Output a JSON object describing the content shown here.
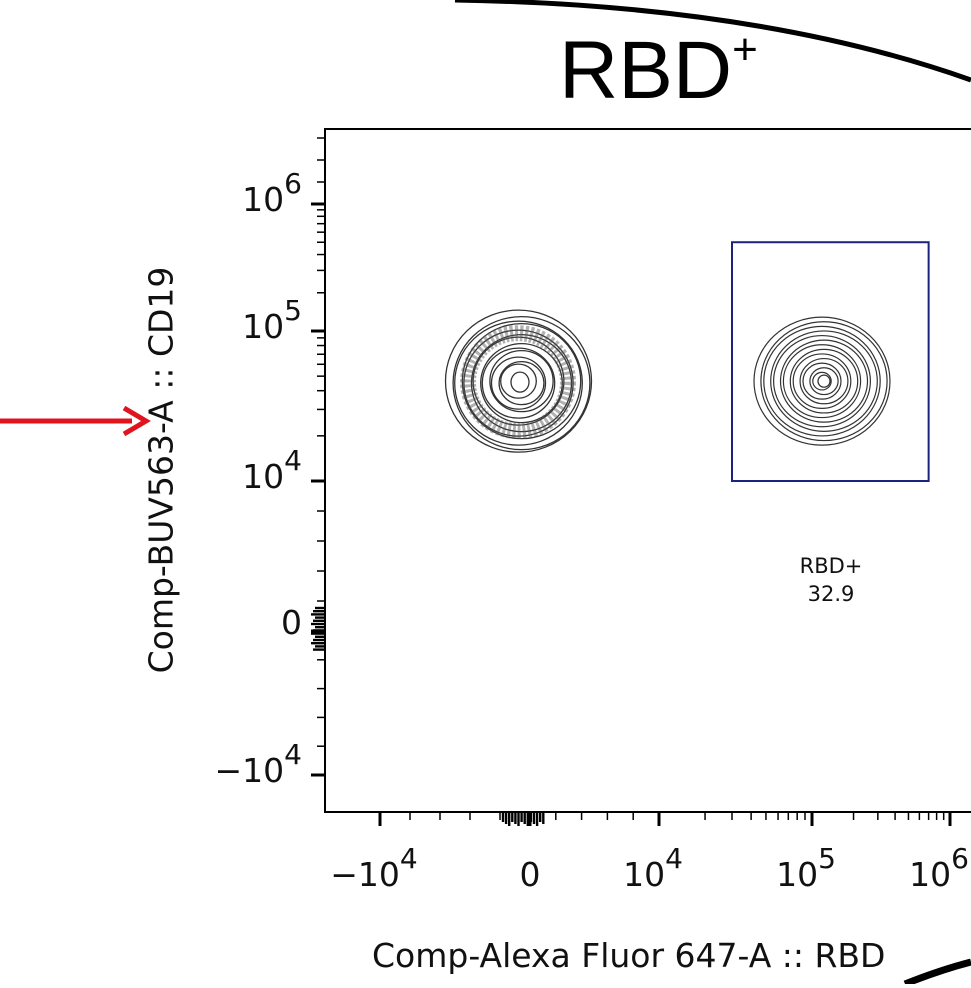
{
  "panel": {
    "title_main": "RBD",
    "title_sup": "+"
  },
  "chart_data": {
    "type": "scatter",
    "plot_style": "contour",
    "scale": "biexponential",
    "xlabel": "Comp-Alexa Fluor 647-A :: RBD",
    "ylabel": "Comp-BUV563-A :: CD19",
    "x_ticks": [
      "-10^4",
      "0",
      "10^4",
      "10^5",
      "10^6"
    ],
    "y_ticks": [
      "-10^4",
      "0",
      "10^4",
      "10^5",
      "10^6"
    ],
    "populations": [
      {
        "x": 0,
        "y": 50000,
        "shape": "ring"
      },
      {
        "x": 100000,
        "y": 50000,
        "shape": "solid"
      }
    ],
    "gates": [
      {
        "name": "RBD+",
        "percent": 32.9,
        "x_range": [
          30000,
          700000
        ],
        "y_range": [
          10000,
          500000
        ],
        "color": "#1a237e"
      }
    ]
  },
  "annotations": {
    "arrow_color": "#e0141e",
    "gate_label": "RBD+",
    "gate_percent": "32.9"
  }
}
